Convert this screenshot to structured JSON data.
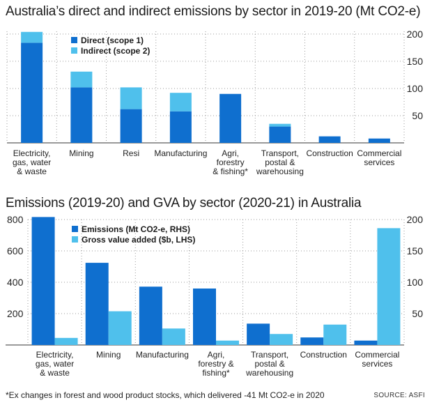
{
  "colors": {
    "direct": "#0f6fcf",
    "indirect": "#4fc0ec",
    "grid": "#9a9a9a"
  },
  "chart_data": [
    {
      "type": "bar",
      "stacked": true,
      "title": "Australia’s direct and indirect emissions by sector in 2019-20 (Mt CO2-e)",
      "categories": [
        [
          "Electricity,",
          "gas, water",
          "& waste"
        ],
        [
          "Mining"
        ],
        [
          "Resi"
        ],
        [
          "Manufacturing"
        ],
        [
          "Agri,",
          "forestry",
          "& fishing*"
        ],
        [
          "Transport,",
          "postal &",
          "warehousing"
        ],
        [
          "Construction"
        ],
        [
          "Commercial",
          "services"
        ]
      ],
      "series": [
        {
          "name": "Direct (scope 1)",
          "values": [
            184,
            102,
            62,
            58,
            90,
            30,
            12,
            8
          ]
        },
        {
          "name": "Indirect (scope 2)",
          "values": [
            20,
            29,
            40,
            34,
            0,
            5,
            0,
            0
          ]
        }
      ],
      "y_axis": {
        "side": "right",
        "ticks": [
          50,
          100,
          150,
          200
        ],
        "range": [
          0,
          205
        ]
      },
      "legend": "top-left"
    },
    {
      "type": "bar",
      "grouped": true,
      "title": "Emissions (2019-20) and GVA by sector (2020-21) in Australia",
      "categories": [
        [
          "Electricity,",
          "gas, water",
          "& waste"
        ],
        [
          "Mining"
        ],
        [
          "Manufacturing"
        ],
        [
          "Agri,",
          "forestry &",
          "fishing*"
        ],
        [
          "Transport,",
          "postal &",
          "warehousing"
        ],
        [
          "Construction"
        ],
        [
          "Commercial",
          "services"
        ]
      ],
      "series": [
        {
          "name": "Emissions (Mt CO2-e, RHS)",
          "axis": "right",
          "values": [
            204,
            131,
            93,
            90,
            34,
            12,
            7
          ]
        },
        {
          "name": "Gross value added ($b, LHS)",
          "axis": "left",
          "values": [
            45,
            215,
            105,
            28,
            70,
            130,
            745
          ]
        }
      ],
      "left_axis": {
        "ticks": [
          200,
          400,
          600,
          800
        ],
        "range": [
          0,
          800
        ]
      },
      "right_axis": {
        "ticks": [
          50,
          100,
          150,
          200
        ],
        "range": [
          0,
          200
        ]
      },
      "legend": "top-left"
    }
  ],
  "footnote": "*Ex changes in forest and wood product stocks, which delivered -41 Mt CO2-e in 2020",
  "source": "SOURCE: ASFI"
}
